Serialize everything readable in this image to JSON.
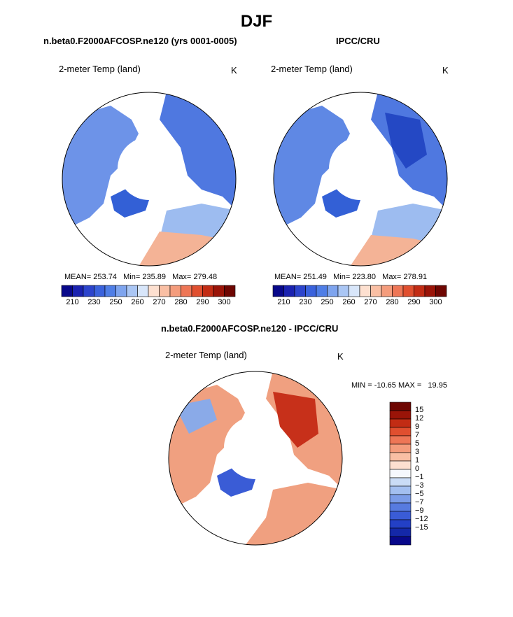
{
  "title": "DJF",
  "panels": [
    {
      "subtitle": "n.beta0.F2000AFCOSP.ne120 (yrs 0001-0005)",
      "var_label": "2-meter Temp (land)",
      "units": "K",
      "mean_label": "MEAN=",
      "mean": "253.74",
      "min_label": "Min=",
      "min": "235.89",
      "max_label": "Max=",
      "max": "279.48"
    },
    {
      "subtitle": "IPCC/CRU",
      "var_label": "2-meter Temp (land)",
      "units": "K",
      "mean_label": "MEAN=",
      "mean": "251.49",
      "min_label": "Min=",
      "min": "223.80",
      "max_label": "Max=",
      "max": "278.91"
    }
  ],
  "diff_panel": {
    "subtitle": "n.beta0.F2000AFCOSP.ne120 - IPCC/CRU",
    "var_label": "2-meter Temp (land)",
    "units": "K",
    "minmax": "MIN = -10.65 MAX =   19.95"
  },
  "colors": {
    "abs_scale": [
      "#08088a",
      "#1a22b0",
      "#2c44cc",
      "#3a62dc",
      "#4f7ee6",
      "#7ea4ee",
      "#aac6f4",
      "#d8e6fa",
      "#fde0d0",
      "#f9bfa4",
      "#f49c7c",
      "#ee7656",
      "#e04f2f",
      "#c22c14",
      "#9a1408",
      "#6e0602"
    ],
    "diff_scale": [
      "#6e0602",
      "#9a1408",
      "#c22c14",
      "#e04f2f",
      "#ee7656",
      "#f49c7c",
      "#f9bfa4",
      "#fde0d0",
      "#f5f8fd",
      "#cadcf6",
      "#a3bff0",
      "#7b9ce8",
      "#577be0",
      "#3a5cd6",
      "#2340c6",
      "#1428a8",
      "#08088a"
    ],
    "land_abs_1": "#6d93e8",
    "land_abs_2": "#4f78e0",
    "land_abs_3": "#3360d6",
    "land_abs_4": "#9dbcf0",
    "land_warm": "#f4b396",
    "land_diff_warm": "#f0a080",
    "land_diff_hot": "#c7301a",
    "land_diff_cool": "#8aaae8"
  },
  "chart_data": [
    {
      "type": "heatmap",
      "title": "n.beta0.F2000AFCOSP.ne120 (yrs 0001-0005)",
      "variable": "2-meter Temp (land)",
      "units": "K",
      "colorbar_ticks": [
        "210",
        "230",
        "250",
        "260",
        "270",
        "280",
        "290",
        "300"
      ],
      "stats": {
        "mean": 253.74,
        "min": 235.89,
        "max": 279.48
      }
    },
    {
      "type": "heatmap",
      "title": "IPCC/CRU",
      "variable": "2-meter Temp (land)",
      "units": "K",
      "colorbar_ticks": [
        "210",
        "230",
        "250",
        "260",
        "270",
        "280",
        "290",
        "300"
      ],
      "stats": {
        "mean": 251.49,
        "min": 223.8,
        "max": 278.91
      }
    },
    {
      "type": "heatmap",
      "title": "n.beta0.F2000AFCOSP.ne120 - IPCC/CRU",
      "variable": "2-meter Temp (land)",
      "units": "K",
      "colorbar_ticks": [
        "15",
        "12",
        "9",
        "7",
        "5",
        "3",
        "1",
        "0",
        "−1",
        "−3",
        "−5",
        "−7",
        "−9",
        "−12",
        "−15"
      ],
      "stats": {
        "min": -10.65,
        "max": 19.95
      }
    }
  ]
}
